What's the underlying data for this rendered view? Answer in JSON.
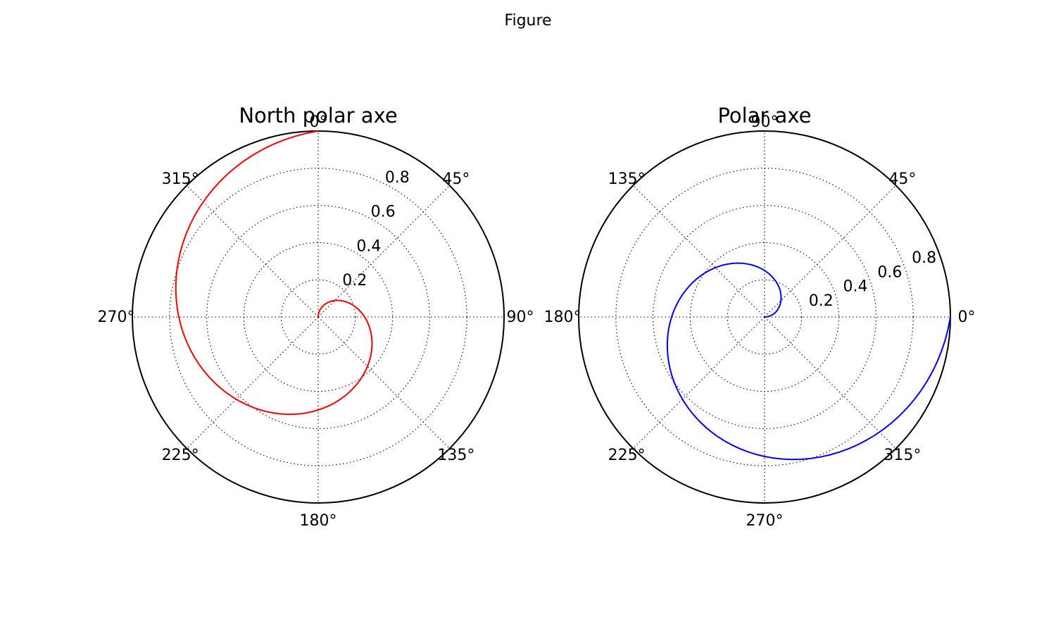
{
  "figure": {
    "title": "Figure"
  },
  "chart_data": [
    {
      "type": "line",
      "subtype": "polar",
      "title": "North polar axe",
      "theta_zero_location": "N",
      "theta_direction": "clockwise",
      "rlim": [
        0,
        1
      ],
      "r_ticks": [
        0.2,
        0.4,
        0.6,
        0.8
      ],
      "r_tick_labels": [
        "0.2",
        "0.4",
        "0.6",
        "0.8"
      ],
      "theta_ticks_deg": [
        0,
        45,
        90,
        135,
        180,
        225,
        270,
        315
      ],
      "theta_tick_labels": [
        "0°",
        "45°",
        "90°",
        "135°",
        "180°",
        "225°",
        "270°",
        "315°"
      ],
      "grid": true,
      "series": [
        {
          "color": "#ff0000",
          "theta_deg_start": 0,
          "theta_deg_end": 360,
          "r_start": 0,
          "r_end": 1,
          "samples": 100
        }
      ]
    },
    {
      "type": "line",
      "subtype": "polar",
      "title": "Polar axe",
      "theta_zero_location": "E",
      "theta_direction": "counterclockwise",
      "rlim": [
        0,
        1
      ],
      "r_ticks": [
        0.2,
        0.4,
        0.6,
        0.8
      ],
      "r_tick_labels": [
        "0.2",
        "0.4",
        "0.6",
        "0.8"
      ],
      "theta_ticks_deg": [
        0,
        45,
        90,
        135,
        180,
        225,
        270,
        315
      ],
      "theta_tick_labels": [
        "0°",
        "45°",
        "90°",
        "135°",
        "180°",
        "225°",
        "270°",
        "315°"
      ],
      "grid": true,
      "series": [
        {
          "color": "#0000ff",
          "theta_deg_start": 0,
          "theta_deg_end": 360,
          "r_start": 0,
          "r_end": 1,
          "samples": 100
        }
      ]
    }
  ]
}
